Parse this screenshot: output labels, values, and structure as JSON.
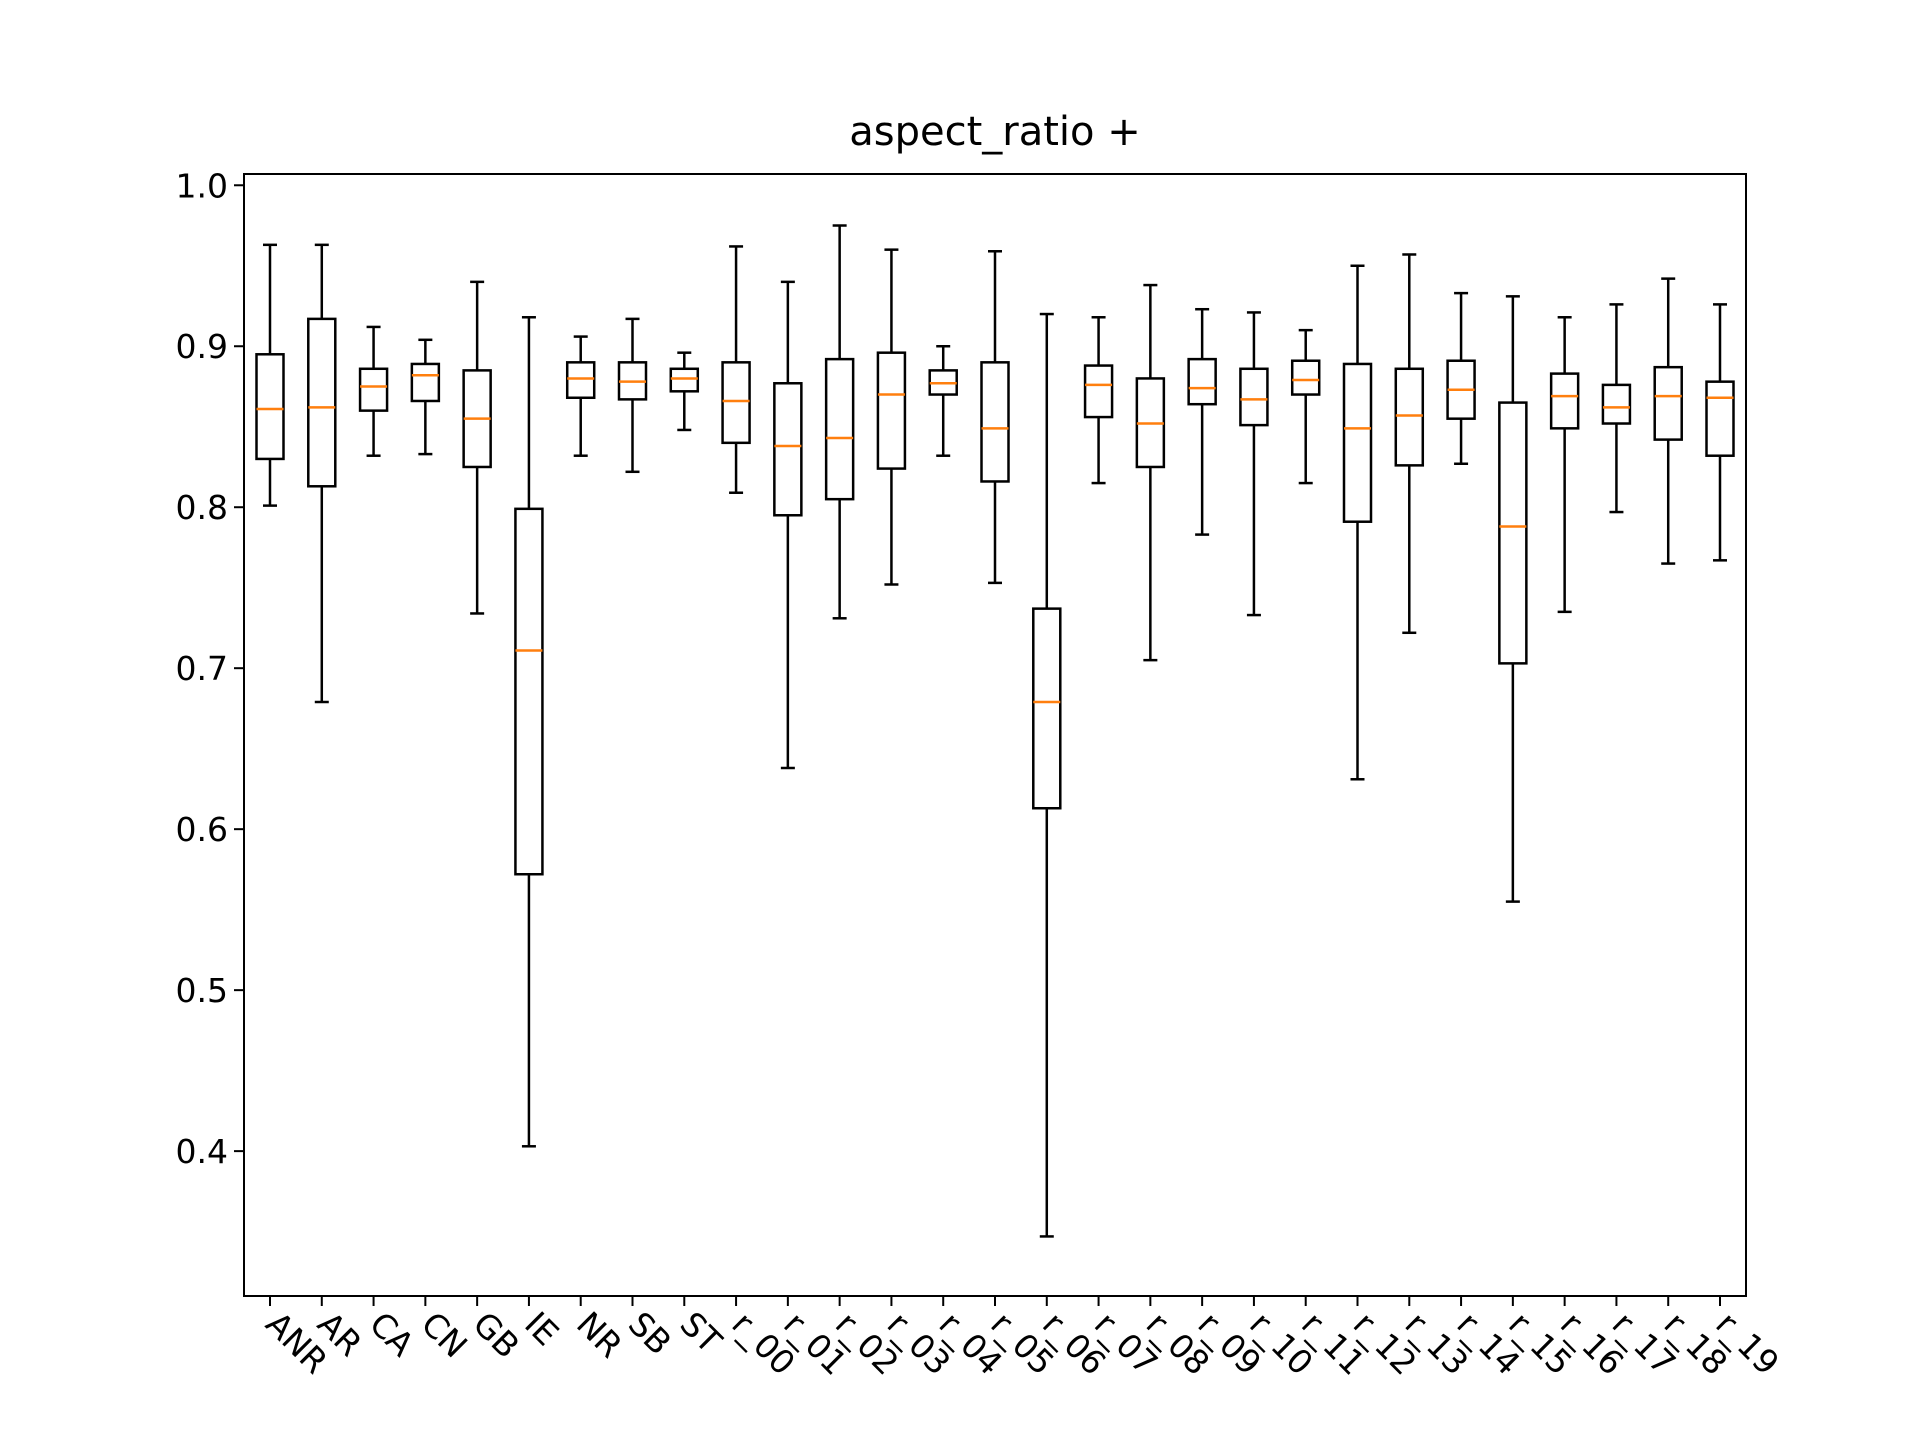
{
  "chart_data": {
    "type": "box",
    "title": "aspect_ratio +",
    "xlabel": "",
    "ylabel": "",
    "ylim": [
      0.31,
      1.007
    ],
    "yticks": [
      0.4,
      0.5,
      0.6,
      0.7,
      0.8,
      0.9,
      1.0
    ],
    "ytick_labels": [
      "0.4",
      "0.5",
      "0.6",
      "0.7",
      "0.8",
      "0.9",
      "1.0"
    ],
    "grid": false,
    "legend": "none",
    "colors": {
      "box": "#000000",
      "median": "#ff7f0e",
      "background": "#ffffff"
    },
    "categories": [
      "ANR",
      "AR",
      "CA",
      "CN",
      "GB",
      "IE",
      "NR",
      "SB",
      "ST",
      "r_00",
      "r_01",
      "r_02",
      "r_03",
      "r_04",
      "r_05",
      "r_06",
      "r_07",
      "r_08",
      "r_09",
      "r_10",
      "r_11",
      "r_12",
      "r_13",
      "r_14",
      "r_15",
      "r_16",
      "r_17",
      "r_18",
      "r_19"
    ],
    "boxes": [
      {
        "whislo": 0.801,
        "q1": 0.83,
        "med": 0.861,
        "q3": 0.895,
        "whishi": 0.963
      },
      {
        "whislo": 0.679,
        "q1": 0.813,
        "med": 0.862,
        "q3": 0.917,
        "whishi": 0.963
      },
      {
        "whislo": 0.832,
        "q1": 0.86,
        "med": 0.875,
        "q3": 0.886,
        "whishi": 0.912
      },
      {
        "whislo": 0.833,
        "q1": 0.866,
        "med": 0.882,
        "q3": 0.889,
        "whishi": 0.904
      },
      {
        "whislo": 0.734,
        "q1": 0.825,
        "med": 0.855,
        "q3": 0.885,
        "whishi": 0.94
      },
      {
        "whislo": 0.403,
        "q1": 0.572,
        "med": 0.711,
        "q3": 0.799,
        "whishi": 0.918
      },
      {
        "whislo": 0.832,
        "q1": 0.868,
        "med": 0.88,
        "q3": 0.89,
        "whishi": 0.906
      },
      {
        "whislo": 0.822,
        "q1": 0.867,
        "med": 0.878,
        "q3": 0.89,
        "whishi": 0.917
      },
      {
        "whislo": 0.848,
        "q1": 0.872,
        "med": 0.88,
        "q3": 0.886,
        "whishi": 0.896
      },
      {
        "whislo": 0.809,
        "q1": 0.84,
        "med": 0.866,
        "q3": 0.89,
        "whishi": 0.962
      },
      {
        "whislo": 0.638,
        "q1": 0.795,
        "med": 0.838,
        "q3": 0.877,
        "whishi": 0.94
      },
      {
        "whislo": 0.731,
        "q1": 0.805,
        "med": 0.843,
        "q3": 0.892,
        "whishi": 0.975
      },
      {
        "whislo": 0.752,
        "q1": 0.824,
        "med": 0.87,
        "q3": 0.896,
        "whishi": 0.96
      },
      {
        "whislo": 0.832,
        "q1": 0.87,
        "med": 0.877,
        "q3": 0.885,
        "whishi": 0.9
      },
      {
        "whislo": 0.753,
        "q1": 0.816,
        "med": 0.849,
        "q3": 0.89,
        "whishi": 0.959
      },
      {
        "whislo": 0.347,
        "q1": 0.613,
        "med": 0.679,
        "q3": 0.737,
        "whishi": 0.92
      },
      {
        "whislo": 0.815,
        "q1": 0.856,
        "med": 0.876,
        "q3": 0.888,
        "whishi": 0.918
      },
      {
        "whislo": 0.705,
        "q1": 0.825,
        "med": 0.852,
        "q3": 0.88,
        "whishi": 0.938
      },
      {
        "whislo": 0.783,
        "q1": 0.864,
        "med": 0.874,
        "q3": 0.892,
        "whishi": 0.923
      },
      {
        "whislo": 0.733,
        "q1": 0.851,
        "med": 0.867,
        "q3": 0.886,
        "whishi": 0.921
      },
      {
        "whislo": 0.815,
        "q1": 0.87,
        "med": 0.879,
        "q3": 0.891,
        "whishi": 0.91
      },
      {
        "whislo": 0.631,
        "q1": 0.791,
        "med": 0.849,
        "q3": 0.889,
        "whishi": 0.95
      },
      {
        "whislo": 0.722,
        "q1": 0.826,
        "med": 0.857,
        "q3": 0.886,
        "whishi": 0.957
      },
      {
        "whislo": 0.827,
        "q1": 0.855,
        "med": 0.873,
        "q3": 0.891,
        "whishi": 0.933
      },
      {
        "whislo": 0.555,
        "q1": 0.703,
        "med": 0.788,
        "q3": 0.865,
        "whishi": 0.931
      },
      {
        "whislo": 0.735,
        "q1": 0.849,
        "med": 0.869,
        "q3": 0.883,
        "whishi": 0.918
      },
      {
        "whislo": 0.797,
        "q1": 0.852,
        "med": 0.862,
        "q3": 0.876,
        "whishi": 0.926
      },
      {
        "whislo": 0.765,
        "q1": 0.842,
        "med": 0.869,
        "q3": 0.887,
        "whishi": 0.942
      },
      {
        "whislo": 0.767,
        "q1": 0.832,
        "med": 0.868,
        "q3": 0.878,
        "whishi": 0.926
      }
    ]
  }
}
